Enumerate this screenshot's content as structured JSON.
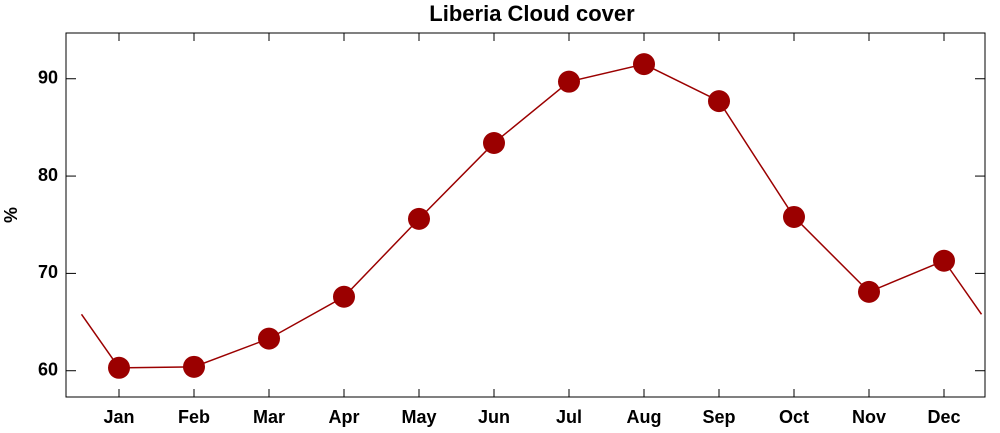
{
  "chart_data": {
    "type": "line",
    "title": "Liberia Cloud cover",
    "y_label": "%",
    "categories": [
      "Jan",
      "Feb",
      "Mar",
      "Apr",
      "May",
      "Jun",
      "Jul",
      "Aug",
      "Sep",
      "Oct",
      "Nov",
      "Dec"
    ],
    "series": [
      {
        "name": "Cloud cover",
        "color": "#9b0000",
        "values": [
          60.3,
          60.4,
          63.3,
          67.6,
          75.6,
          83.4,
          89.7,
          91.5,
          87.7,
          75.8,
          68.1,
          71.3
        ]
      }
    ],
    "ylim": [
      57.3,
      94.7
    ],
    "yticks": [
      60,
      70,
      80,
      90
    ],
    "grid": false
  }
}
